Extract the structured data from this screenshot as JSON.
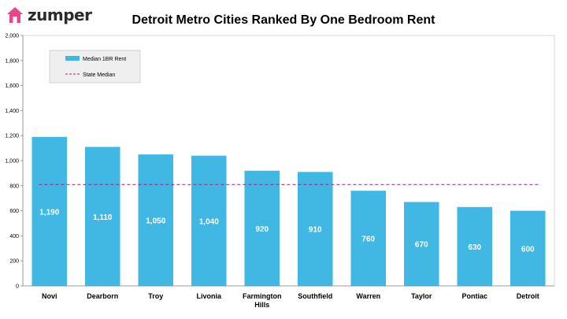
{
  "brand": {
    "name": "zumper",
    "logo_icon": "house-icon",
    "logo_color": "#e8458b"
  },
  "chart_data": {
    "type": "bar",
    "title": "Detroit Metro Cities Ranked By One Bedroom Rent",
    "categories": [
      "Novi",
      "Dearborn",
      "Troy",
      "Livonia",
      [
        "Farmington",
        "Hills"
      ],
      "Southfield",
      "Warren",
      "Taylor",
      "Pontiac",
      "Detroit"
    ],
    "series": [
      {
        "name": "Median 1BR Rent",
        "values": [
          1190,
          1110,
          1050,
          1040,
          920,
          910,
          760,
          670,
          630,
          600
        ],
        "data_labels": [
          "1,190",
          "1,110",
          "1,050",
          "1,040",
          "920",
          "910",
          "760",
          "670",
          "630",
          "600"
        ],
        "color": "#41b8e4"
      }
    ],
    "reference_line": {
      "name": "State Median",
      "value": 810,
      "color": "#a0207a",
      "style": "dashed"
    },
    "yticks": [
      0,
      200,
      400,
      600,
      800,
      1000,
      1200,
      1400,
      1600,
      1800,
      2000
    ],
    "ytick_labels": [
      "0",
      "200",
      "400",
      "600",
      "800",
      "1,000",
      "1,200",
      "1,400",
      "1,600",
      "1,800",
      "2,000"
    ],
    "ylim": [
      0,
      2000
    ],
    "xlabel": "",
    "ylabel": "",
    "grid": false,
    "legend_position": "top-left"
  }
}
